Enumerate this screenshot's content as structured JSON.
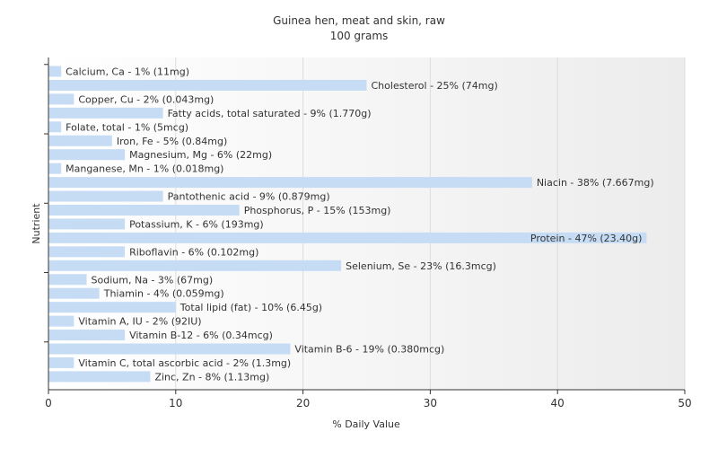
{
  "chart_data": {
    "type": "bar",
    "orientation": "horizontal",
    "title": "Guinea hen, meat and skin, raw",
    "subtitle": "100 grams",
    "xlabel": "% Daily Value",
    "ylabel": "Nutrient",
    "xlim": [
      0,
      50
    ],
    "xticks": [
      "0",
      "10",
      "20",
      "30",
      "40",
      "50"
    ],
    "grid": true,
    "bar_color": "#c6dcf5",
    "categories": [
      "Calcium, Ca",
      "Cholesterol",
      "Copper, Cu",
      "Fatty acids, total saturated",
      "Folate, total",
      "Iron, Fe",
      "Magnesium, Mg",
      "Manganese, Mn",
      "Niacin",
      "Pantothenic acid",
      "Phosphorus, P",
      "Potassium, K",
      "Protein",
      "Riboflavin",
      "Selenium, Se",
      "Sodium, Na",
      "Thiamin",
      "Total lipid (fat)",
      "Vitamin A, IU",
      "Vitamin B-12",
      "Vitamin B-6",
      "Vitamin C, total ascorbic acid",
      "Zinc, Zn"
    ],
    "values": [
      1,
      25,
      2,
      9,
      1,
      5,
      6,
      1,
      38,
      9,
      15,
      6,
      47,
      6,
      23,
      3,
      4,
      10,
      2,
      6,
      19,
      2,
      8
    ],
    "labels": [
      "Calcium, Ca - 1% (11mg)",
      "Cholesterol - 25% (74mg)",
      "Copper, Cu - 2% (0.043mg)",
      "Fatty acids, total saturated - 9% (1.770g)",
      "Folate, total - 1% (5mcg)",
      "Iron, Fe - 5% (0.84mg)",
      "Magnesium, Mg - 6% (22mg)",
      "Manganese, Mn - 1% (0.018mg)",
      "Niacin - 38% (7.667mg)",
      "Pantothenic acid - 9% (0.879mg)",
      "Phosphorus, P - 15% (153mg)",
      "Potassium, K - 6% (193mg)",
      "Protein - 47% (23.40g)",
      "Riboflavin - 6% (0.102mg)",
      "Selenium, Se - 23% (16.3mcg)",
      "Sodium, Na - 3% (67mg)",
      "Thiamin - 4% (0.059mg)",
      "Total lipid (fat) - 10% (6.45g)",
      "Vitamin A, IU - 2% (92IU)",
      "Vitamin B-12 - 6% (0.34mcg)",
      "Vitamin B-6 - 19% (0.380mcg)",
      "Vitamin C, total ascorbic acid - 2% (1.3mg)",
      "Zinc, Zn - 8% (1.13mg)"
    ]
  }
}
